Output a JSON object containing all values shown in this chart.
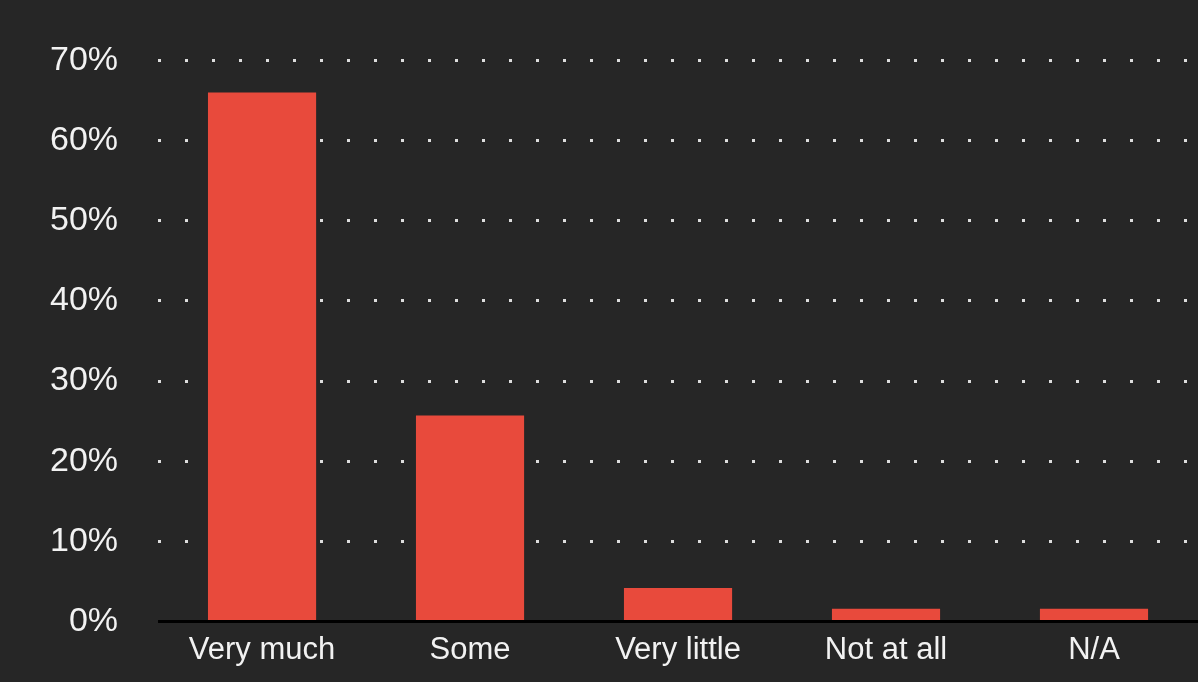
{
  "chart_data": {
    "type": "bar",
    "categories": [
      "Very much",
      "Some",
      "Very little",
      "Not at all",
      "N/A"
    ],
    "values": [
      66,
      25.7,
      4.2,
      1.6,
      1.6
    ],
    "color": "#e84a3c",
    "ylim": [
      0,
      70
    ],
    "yticks": [
      {
        "value": 0,
        "label": "0%"
      },
      {
        "value": 10,
        "label": "10%"
      },
      {
        "value": 20,
        "label": "20%"
      },
      {
        "value": 30,
        "label": "30%"
      },
      {
        "value": 40,
        "label": "40%"
      },
      {
        "value": 50,
        "label": "50%"
      },
      {
        "value": 60,
        "label": "60%"
      },
      {
        "value": 70,
        "label": "70%"
      }
    ],
    "grid": "y",
    "legend": false
  }
}
